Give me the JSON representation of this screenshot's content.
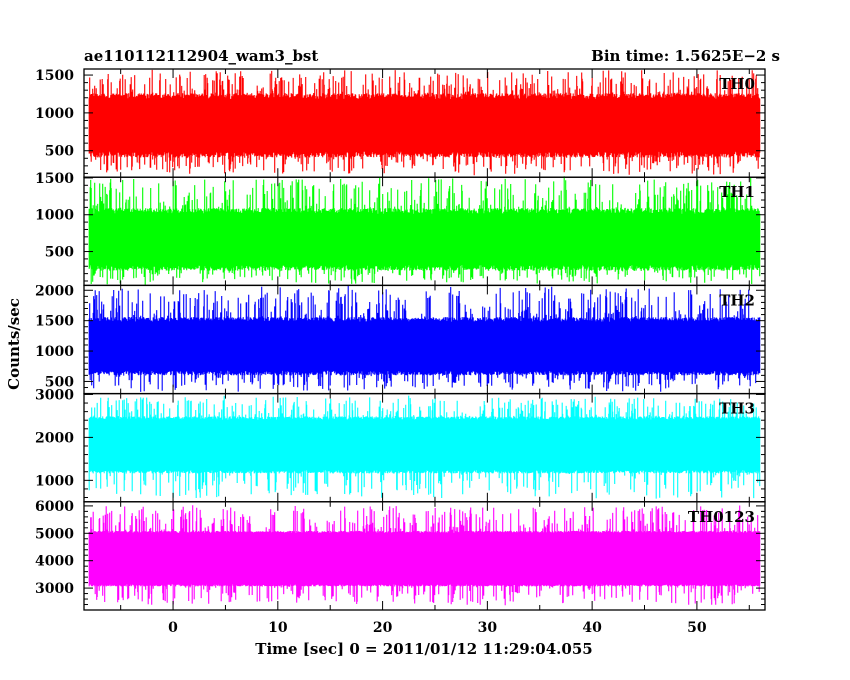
{
  "chart_data": {
    "type": "line",
    "title": "ae110112112904_wam3_bst",
    "subtitle": "Bin time: 1.5625E−2 s",
    "xlabel": "Time [sec] 0 = 2011/01/12 11:29:04.055",
    "ylabel": "Counts/sec",
    "xlim": [
      -8.5,
      56.5
    ],
    "x_ticks": [
      0,
      10,
      20,
      30,
      40,
      50
    ],
    "x_tick_labels": [
      "0",
      "10",
      "20",
      "30",
      "40",
      "50"
    ],
    "x_data_range": [
      -8.0,
      56.0
    ],
    "series": [
      {
        "name": "TH0",
        "color": "#ff0000",
        "ylim": [
          150,
          1580
        ],
        "y_ticks": [
          500,
          1000,
          1500
        ],
        "y_tick_labels": [
          "500",
          "1000",
          "1500"
        ],
        "typical_band": [
          450,
          1220
        ],
        "extreme_range": [
          200,
          1550
        ]
      },
      {
        "name": "TH1",
        "color": "#00ff00",
        "ylim": [
          40,
          1510
        ],
        "y_ticks": [
          500,
          1000,
          1500
        ],
        "y_tick_labels": [
          "500",
          "1000",
          "1500"
        ],
        "typical_band": [
          280,
          1050
        ],
        "extreme_range": [
          80,
          1500
        ]
      },
      {
        "name": "TH2",
        "color": "#0000ff",
        "ylim": [
          300,
          2080
        ],
        "y_ticks": [
          500,
          1000,
          1500,
          2000
        ],
        "y_tick_labels": [
          "500",
          "1000",
          "1500",
          "2000"
        ],
        "typical_band": [
          640,
          1520
        ],
        "extreme_range": [
          360,
          2050
        ]
      },
      {
        "name": "TH3",
        "color": "#00ffff",
        "ylim": [
          500,
          3020
        ],
        "y_ticks": [
          1000,
          2000,
          3000
        ],
        "y_tick_labels": [
          "1000",
          "2000",
          "3000"
        ],
        "typical_band": [
          1200,
          2450
        ],
        "extreme_range": [
          600,
          2950
        ]
      },
      {
        "name": "TH0123",
        "color": "#ff00ff",
        "ylim": [
          2200,
          6150
        ],
        "y_ticks": [
          3000,
          4000,
          5000,
          6000
        ],
        "y_tick_labels": [
          "3000",
          "4000",
          "5000",
          "6000"
        ],
        "typical_band": [
          3100,
          5050
        ],
        "extreme_range": [
          2400,
          6000
        ]
      }
    ]
  }
}
